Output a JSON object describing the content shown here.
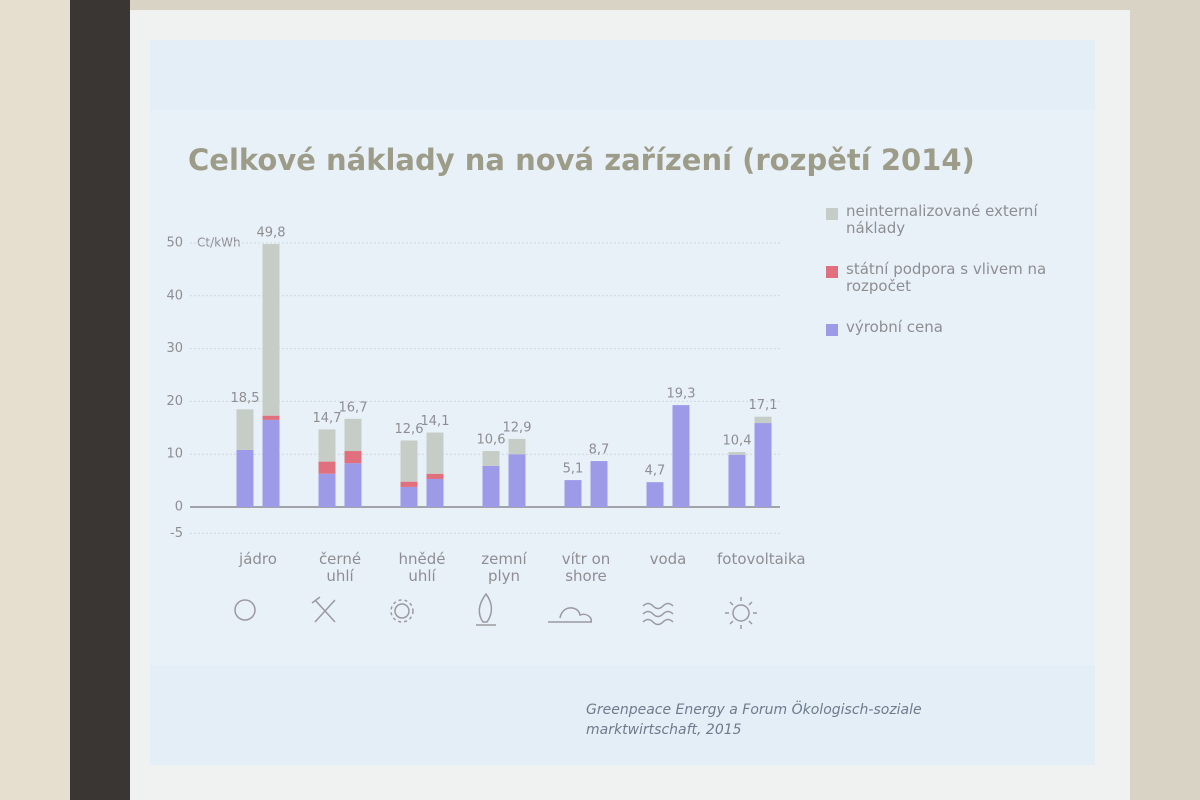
{
  "chart_data": {
    "type": "stacked-bar",
    "title": "Celkové náklady na nová zařízení (rozpětí 2014)",
    "y_unit_label": "Ct/kWh",
    "categories": [
      "jádro",
      null,
      "černé uhlí",
      null,
      "hnědé uhlí",
      null,
      "zemní plyn",
      null,
      "vítr on shore",
      null,
      "voda",
      null,
      "fotovoltaika",
      null
    ],
    "series": [
      {
        "name": "výrobní cena",
        "color": "#9d9be8",
        "values": [
          10.8,
          16.5,
          6.3,
          8.3,
          3.8,
          5.3,
          7.8,
          10.0,
          5.1,
          8.7,
          4.7,
          19.3,
          9.9,
          15.9
        ]
      },
      {
        "name": "státní podpora s vlivem na rozpočet",
        "color": "#e0707e",
        "values": [
          0,
          0.8,
          2.3,
          2.3,
          1.0,
          1.0,
          0,
          0,
          0,
          0,
          0,
          0,
          0,
          0
        ]
      },
      {
        "name": "neinternalizované externí náklady",
        "color": "#c6cdc6",
        "values": [
          7.7,
          32.5,
          6.1,
          6.1,
          7.8,
          7.8,
          2.8,
          2.9,
          0,
          0,
          0,
          0,
          0.5,
          1.2
        ]
      }
    ],
    "totals": [
      18.5,
      49.8,
      14.7,
      16.7,
      12.6,
      14.1,
      10.6,
      12.9,
      5.1,
      8.7,
      4.7,
      19.3,
      10.4,
      17.1
    ],
    "value_labels": [
      "18,5",
      "49,8",
      "14,7",
      "16,7",
      "12,6",
      "14,1",
      "10,6",
      "12,9",
      "5,1",
      "8,7",
      "4,7",
      "19,3",
      "10,4",
      "17,1"
    ],
    "ylim": [
      -5,
      52
    ],
    "yticks": [
      -5,
      0,
      10,
      20,
      30,
      40,
      50
    ],
    "grid": true,
    "source": "Greenpeace Energy a  Forum Ökologisch-soziale marktwirtschaft, 2015"
  }
}
